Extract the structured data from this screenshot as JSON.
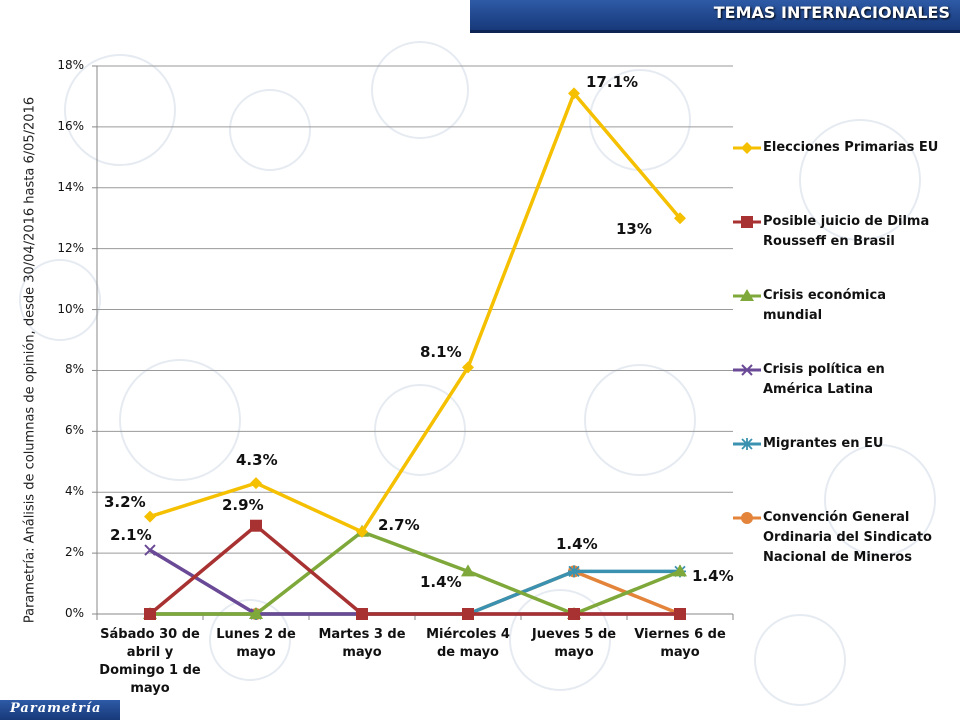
{
  "header": {
    "title": "TEMAS INTERNACIONALES"
  },
  "footer": {
    "logo_text": "Parametría"
  },
  "side_label": "Parametría: Análisis de columnas de opinión, desde 30/04/2016 hasta  6/05/2016",
  "chart_data": {
    "type": "line",
    "categories": [
      "Sábado 30 de abril y Domingo 1 de mayo",
      "Lunes 2 de mayo",
      "Martes 3 de mayo",
      "Miércoles 4 de mayo",
      "Jueves 5 de mayo",
      "Viernes 6 de mayo"
    ],
    "yticks": [
      "0%",
      "2%",
      "4%",
      "6%",
      "8%",
      "10%",
      "12%",
      "14%",
      "16%",
      "18%"
    ],
    "ylim": [
      0,
      18
    ],
    "grid": true,
    "legend_position": "right",
    "series": [
      {
        "name": "Elecciones Primarias EU",
        "color": "#f5c000",
        "marker": "diamond",
        "values": [
          3.2,
          4.3,
          2.7,
          8.1,
          17.1,
          13.0
        ]
      },
      {
        "name": "Posible juicio de Dilma Rousseff en Brasil",
        "color": "#a83232",
        "marker": "square",
        "values": [
          0,
          2.9,
          0,
          0,
          0,
          0
        ]
      },
      {
        "name": "Crisis económica mundial",
        "color": "#7fa83a",
        "marker": "triangle",
        "values": [
          0,
          0,
          2.7,
          1.4,
          0,
          1.4
        ]
      },
      {
        "name": "Crisis política en América Latina",
        "color": "#6a4a96",
        "marker": "x",
        "values": [
          2.1,
          0,
          0,
          0,
          0,
          0
        ]
      },
      {
        "name": "Migrantes en EU",
        "color": "#3a92b0",
        "marker": "star",
        "values": [
          0,
          0,
          0,
          0,
          1.4,
          1.4
        ]
      },
      {
        "name": "Convención General Ordinaria del Sindicato Nacional de Mineros",
        "color": "#e3843a",
        "marker": "circle",
        "values": [
          0,
          0,
          0,
          0,
          1.4,
          0
        ]
      }
    ],
    "data_labels": [
      {
        "text": "3.2%",
        "series": 0,
        "point": 0
      },
      {
        "text": "4.3%",
        "series": 0,
        "point": 1
      },
      {
        "text": "8.1%",
        "series": 0,
        "point": 3
      },
      {
        "text": "17.1%",
        "series": 0,
        "point": 4
      },
      {
        "text": "13%",
        "series": 0,
        "point": 5
      },
      {
        "text": "2.9%",
        "series": 1,
        "point": 1
      },
      {
        "text": "2.7%",
        "series": 2,
        "point": 2
      },
      {
        "text": "1.4%",
        "series": 2,
        "point": 3
      },
      {
        "text": "1.4%",
        "series": 2,
        "point": 5
      },
      {
        "text": "2.1%",
        "series": 3,
        "point": 0
      },
      {
        "text": "1.4%",
        "series": 5,
        "point": 4
      }
    ]
  }
}
